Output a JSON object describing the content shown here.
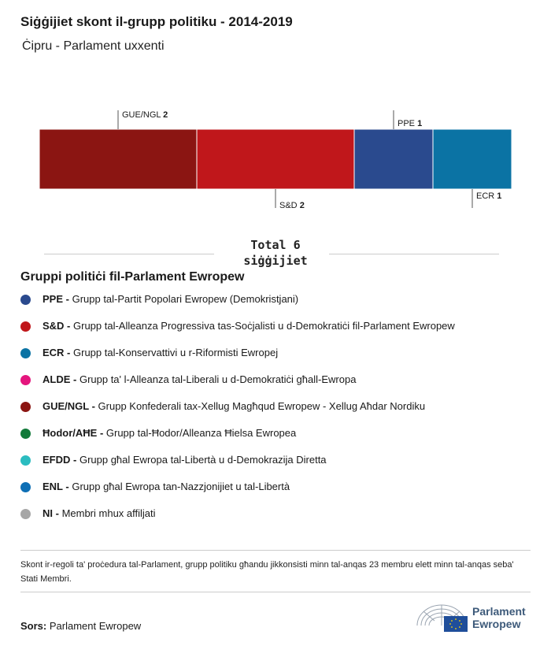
{
  "header": {
    "title": "Siġġijiet skont il-grupp politiku - 2014-2019",
    "subtitle": "Ċipru - Parlament uxxenti"
  },
  "chart_data": {
    "type": "bar",
    "orientation": "horizontal-stacked",
    "categories": [
      "GUE/NGL",
      "S&D",
      "PPE",
      "ECR"
    ],
    "values": [
      2,
      2,
      1,
      1
    ],
    "colors": [
      "#8b1512",
      "#c0171b",
      "#2a4a8e",
      "#0b73a4"
    ],
    "label_positions": [
      "top",
      "bottom",
      "top",
      "bottom"
    ],
    "total_label": "Total 6",
    "total_unit": "siġġijiet",
    "total": 6
  },
  "legend": {
    "title": "Gruppi politiċi fil-Parlament Ewropew",
    "items": [
      {
        "code": "PPE",
        "desc": "Grupp tal-Partit Popolari Ewropew (Demokristjani)",
        "color": "#2a4a8e"
      },
      {
        "code": "S&D",
        "desc": "Grupp tal-Alleanza Progressiva tas-Soċjalisti u d-Demokratiċi fil-Parlament Ewropew",
        "color": "#c0171b"
      },
      {
        "code": "ECR",
        "desc": "Grupp tal-Konservattivi u r-Riformisti Ewropej",
        "color": "#0b73a4"
      },
      {
        "code": "ALDE",
        "desc": "Grupp ta' l-Alleanza tal-Liberali u d-Demokratiċi għall-Ewropa",
        "color": "#e4157d"
      },
      {
        "code": "GUE/NGL",
        "desc": "Grupp Konfederali tax-Xellug Magħqud Ewropew - Xellug Aħdar Nordiku",
        "color": "#8b1512"
      },
      {
        "code": "Ħodor/AĦE",
        "desc": "Grupp tal-Ħodor/Alleanza Ħielsa Ewropea",
        "color": "#127a3a"
      },
      {
        "code": "EFDD",
        "desc": "Grupp għal Ewropa tal-Libertà u d-Demokrazija Diretta",
        "color": "#2bbcc0"
      },
      {
        "code": "ENL",
        "desc": "Grupp għal Ewropa tan-Nazzjonijiet u tal-Libertà",
        "color": "#0e6fb5"
      },
      {
        "code": "NI",
        "desc": "Membri mhux affiljati",
        "color": "#a6a6a6"
      }
    ]
  },
  "footer": {
    "note": "Skont ir-regoli ta' proċedura tal-Parlament, grupp politiku għandu jikkonsisti minn tal-anqas 23 membru elett minn tal-anqas seba' Stati Membri.",
    "source_label": "Sors:",
    "source_value": "Parlament Ewropew",
    "logo_line1": "Parlament",
    "logo_line2": "Ewropew"
  }
}
